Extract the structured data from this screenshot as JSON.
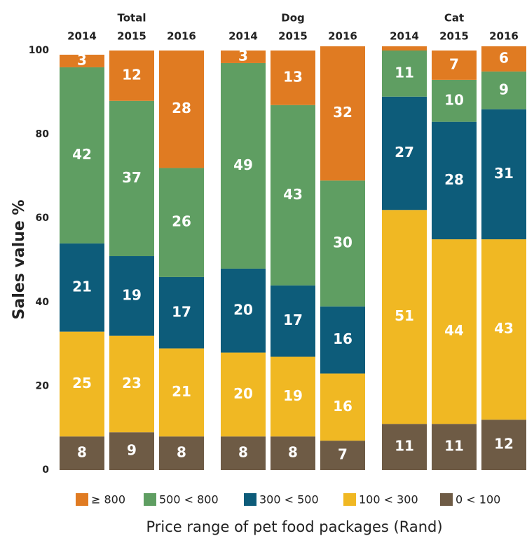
{
  "chart_data": {
    "type": "stacked_bar",
    "groups": [
      "Total",
      "Dog",
      "Cat"
    ],
    "categories": [
      "2014",
      "2015",
      "2016",
      "2014",
      "2015",
      "2016",
      "2014",
      "2015",
      "2016"
    ],
    "series": [
      {
        "name": "≥ 800",
        "color": "#e07b22",
        "values": [
          3,
          12,
          28,
          3,
          13,
          32,
          1,
          7,
          6
        ],
        "value_labels": [
          "3",
          "12",
          "28",
          "3",
          "13",
          "32",
          null,
          "7",
          "6"
        ]
      },
      {
        "name": "500 < 800",
        "color": "#5f9e62",
        "values": [
          42,
          37,
          26,
          49,
          43,
          30,
          11,
          10,
          9
        ]
      },
      {
        "name": "300 < 500",
        "color": "#0d5c7a",
        "values": [
          21,
          19,
          17,
          20,
          17,
          16,
          27,
          28,
          31
        ]
      },
      {
        "name": "100 < 300",
        "color": "#f0b823",
        "values": [
          25,
          23,
          21,
          20,
          19,
          16,
          51,
          44,
          43
        ]
      },
      {
        "name": "0 < 100",
        "color": "#6e5b45",
        "values": [
          8,
          9,
          8,
          8,
          8,
          7,
          11,
          11,
          12
        ]
      }
    ],
    "ylabel": "Sales value %",
    "xlabel": "Price range of pet food packages (Rand)",
    "ylim": [
      0,
      100
    ],
    "yticks": [
      0,
      20,
      40,
      60,
      80,
      100
    ],
    "legend": "bottom"
  }
}
